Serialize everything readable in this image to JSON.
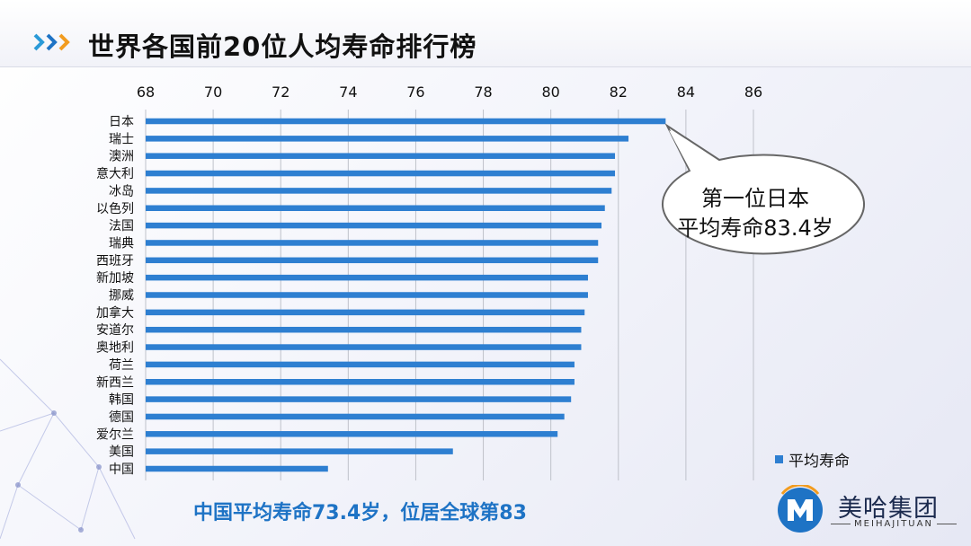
{
  "title": "世界各国前20位人均寿命排行榜",
  "callout": {
    "line1": "第一位日本",
    "line2": "平均寿命83.4岁"
  },
  "footer_note": "中国平均寿命73.4岁，位居全球第83",
  "brand": {
    "name_cn": "美哈集团",
    "name_en": "MEIHAJITUAN"
  },
  "colors": {
    "bar": "#2e7fd1",
    "footer_text": "#1e73c5",
    "gridline": "#bfc2ca"
  },
  "icons": {
    "title_chevrons": "double-chevron-right-icon",
    "logo": "mh-logo-icon",
    "background": "network-decoration"
  },
  "chart_data": {
    "type": "bar",
    "orientation": "horizontal",
    "axis_position": "top",
    "xlim": [
      68,
      86
    ],
    "ticks": [
      68,
      70,
      72,
      74,
      76,
      78,
      80,
      82,
      84,
      86
    ],
    "grid": true,
    "legend_position": "bottom-right",
    "categories": [
      "日本",
      "瑞士",
      "澳洲",
      "意大利",
      "冰岛",
      "以色列",
      "法国",
      "瑞典",
      "西班牙",
      "新加坡",
      "挪威",
      "加拿大",
      "安道尔",
      "奥地利",
      "荷兰",
      "新西兰",
      "韩国",
      "德国",
      "爱尔兰",
      "美国",
      "中国"
    ],
    "series": [
      {
        "name": "平均寿命",
        "values": [
          83.4,
          82.3,
          81.9,
          81.9,
          81.8,
          81.6,
          81.5,
          81.4,
          81.4,
          81.1,
          81.1,
          81.0,
          80.9,
          80.9,
          80.7,
          80.7,
          80.6,
          80.4,
          80.2,
          77.1,
          73.4
        ]
      }
    ]
  }
}
